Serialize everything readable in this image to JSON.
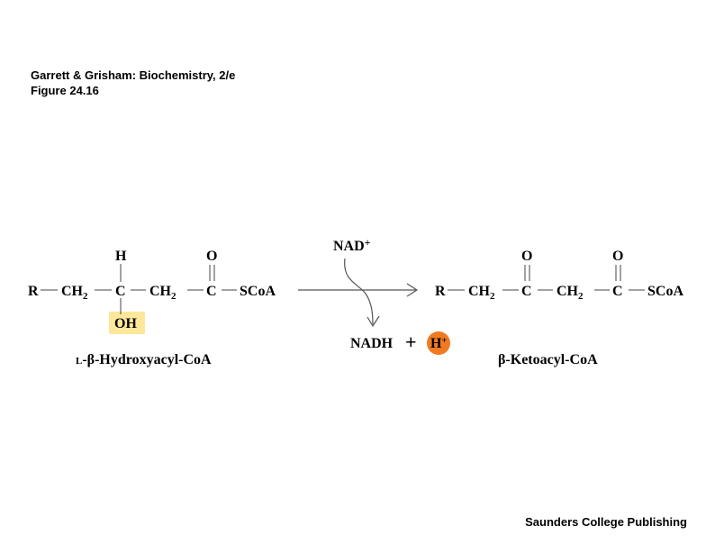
{
  "header": {
    "line1": "Garrett & Grisham: Biochemistry, 2/e",
    "line2": "Figure 24.16"
  },
  "footer": {
    "publisher": "Saunders College Publishing"
  },
  "reactant": {
    "r": "R",
    "ch2_a": "CH",
    "ch2_a_sub": "2",
    "c_center": "C",
    "h_top": "H",
    "oh": "OH",
    "ch2_b": "CH",
    "ch2_b_sub": "2",
    "o_top": "O",
    "c_carbonyl": "C",
    "scoa": "SCoA",
    "name_prefix": "L",
    "name_rest": "-β-Hydroxyacyl-CoA",
    "oh_highlight_color": "#fde79a"
  },
  "reaction": {
    "cofactor_in": "NAD",
    "cofactor_in_sup": "+",
    "product_nadh": "NADH",
    "plus": "+",
    "proton": "H",
    "proton_sup": "+",
    "proton_color": "#f07a22"
  },
  "product": {
    "r": "R",
    "ch2_a": "CH",
    "ch2_a_sub": "2",
    "o_keto": "O",
    "c_keto": "C",
    "ch2_b": "CH",
    "ch2_b_sub": "2",
    "o_top": "O",
    "c_carbonyl": "C",
    "scoa": "SCoA",
    "name": "β-Ketoacyl-CoA"
  }
}
